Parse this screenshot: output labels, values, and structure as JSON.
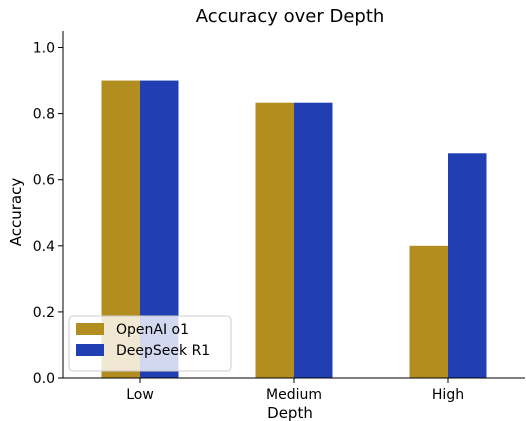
{
  "chart_data": {
    "type": "bar",
    "title": "Accuracy over Depth",
    "xlabel": "Depth",
    "ylabel": "Accuracy",
    "categories": [
      "Low",
      "Medium",
      "High"
    ],
    "series": [
      {
        "name": "OpenAI o1",
        "values": [
          0.9,
          0.833,
          0.4
        ],
        "color": "#b28d20"
      },
      {
        "name": "DeepSeek R1",
        "values": [
          0.9,
          0.833,
          0.68
        ],
        "color": "#1f3fb3"
      }
    ],
    "ylim": [
      0,
      1.05
    ],
    "yticks": [
      "0.0",
      "0.2",
      "0.4",
      "0.6",
      "0.8",
      "1.0"
    ],
    "grid": false,
    "legend_position": "lower-left"
  }
}
